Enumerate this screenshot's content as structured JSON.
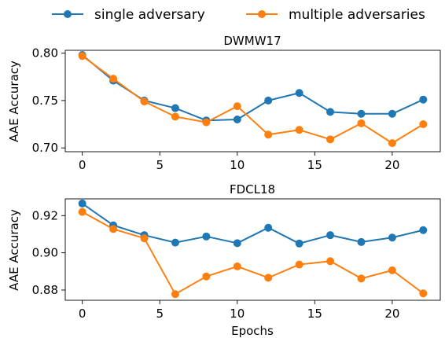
{
  "legend": {
    "single_label": "single adversary",
    "multiple_label": "multiple adversaries"
  },
  "colors": {
    "single": "#1f77b4",
    "multiple": "#ff7f0e"
  },
  "chart_data": [
    {
      "type": "line",
      "title": "DWMW17",
      "xlabel": "",
      "ylabel": "AAE Accuracy",
      "xlim": [
        -1.1,
        23.1
      ],
      "ylim": [
        0.696,
        0.803
      ],
      "xticks": [
        0,
        5,
        10,
        15,
        20
      ],
      "xtick_labels": [
        "0",
        "5",
        "10",
        "15",
        "20"
      ],
      "yticks": [
        0.7,
        0.75,
        0.8
      ],
      "ytick_labels": [
        "0.70",
        "0.75",
        "0.80"
      ],
      "x": [
        0,
        2,
        4,
        6,
        8,
        10,
        12,
        14,
        16,
        18,
        20,
        22
      ],
      "series": [
        {
          "name": "single adversary",
          "color": "#1f77b4",
          "values": [
            0.798,
            0.771,
            0.75,
            0.742,
            0.729,
            0.73,
            0.75,
            0.758,
            0.738,
            0.736,
            0.736,
            0.751
          ]
        },
        {
          "name": "multiple adversaries",
          "color": "#ff7f0e",
          "values": [
            0.797,
            0.773,
            0.749,
            0.733,
            0.727,
            0.744,
            0.714,
            0.719,
            0.709,
            0.726,
            0.705,
            0.725
          ]
        }
      ],
      "grid": false
    },
    {
      "type": "line",
      "title": "FDCL18",
      "xlabel": "Epochs",
      "ylabel": "AAE Accuracy",
      "xlim": [
        -1.1,
        23.1
      ],
      "ylim": [
        0.8745,
        0.929
      ],
      "xticks": [
        0,
        5,
        10,
        15,
        20
      ],
      "xtick_labels": [
        "0",
        "5",
        "10",
        "15",
        "20"
      ],
      "yticks": [
        0.88,
        0.9,
        0.92
      ],
      "ytick_labels": [
        "0.88",
        "0.90",
        "0.92"
      ],
      "x": [
        0,
        2,
        4,
        6,
        8,
        10,
        12,
        14,
        16,
        18,
        20,
        22
      ],
      "series": [
        {
          "name": "single adversary",
          "color": "#1f77b4",
          "values": [
            0.9265,
            0.9148,
            0.9095,
            0.9055,
            0.9088,
            0.9052,
            0.9135,
            0.905,
            0.9095,
            0.9058,
            0.9082,
            0.9122
          ]
        },
        {
          "name": "multiple adversaries",
          "color": "#ff7f0e",
          "values": [
            0.922,
            0.9128,
            0.9078,
            0.8778,
            0.8873,
            0.8927,
            0.8866,
            0.8937,
            0.8955,
            0.8862,
            0.8906,
            0.8782
          ]
        }
      ],
      "grid": false
    }
  ]
}
